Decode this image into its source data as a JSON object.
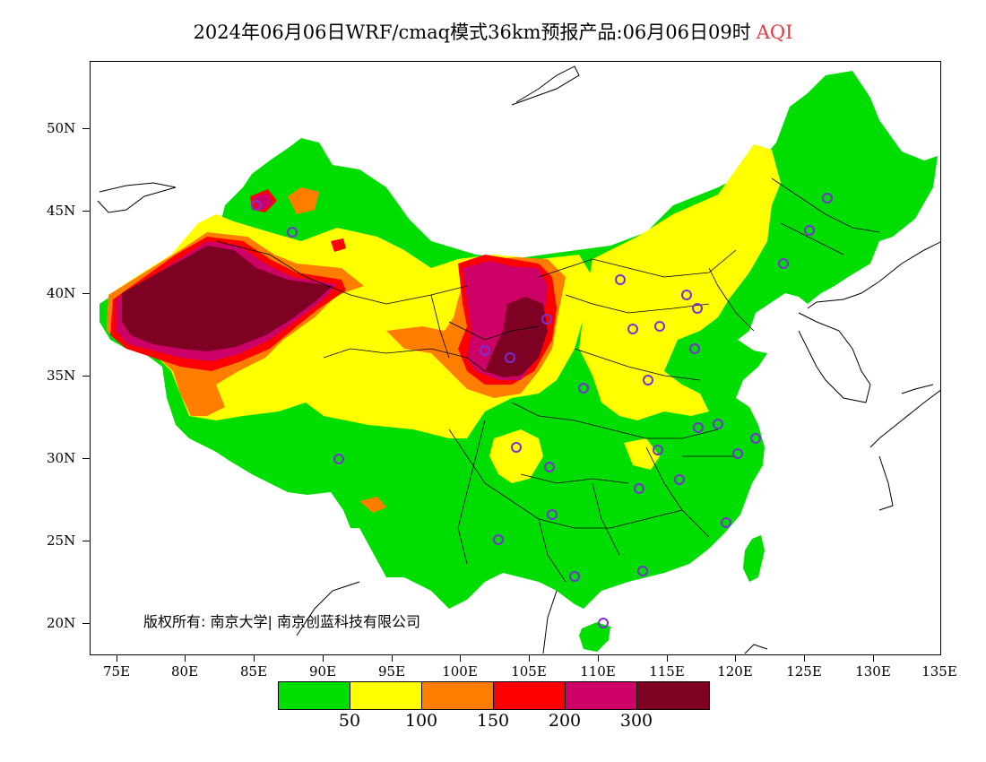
{
  "title": {
    "text": "2024年06月06日WRF/cmaq模式36km预报产品:06月06日09时",
    "variable": "AQI"
  },
  "map": {
    "lat_labels": [
      "50N",
      "45N",
      "40N",
      "35N",
      "30N",
      "25N",
      "20N"
    ],
    "lon_labels": [
      "75E",
      "80E",
      "85E",
      "90E",
      "95E",
      "100E",
      "105E",
      "110E",
      "115E",
      "120E",
      "125E",
      "130E",
      "135E"
    ],
    "lat_range": [
      18,
      54
    ],
    "lon_range": [
      73,
      135
    ]
  },
  "copyright": "版权所有: 南京大学| 南京创蓝科技有限公司",
  "legend": {
    "colors": [
      "#00dd00",
      "#ffff00",
      "#ff7e00",
      "#ff0000",
      "#cc0066",
      "#7e0023"
    ],
    "labels": [
      "50",
      "100",
      "150",
      "200",
      "300"
    ]
  },
  "colors": {
    "good": "#00dd00",
    "moderate": "#ffff00",
    "usg": "#ff7e00",
    "unhealthy": "#ff0000",
    "very_unhealthy": "#cc0066",
    "hazardous": "#7e0023",
    "title_accent": "#e8393d",
    "station_marker": "#7b2fd6"
  }
}
